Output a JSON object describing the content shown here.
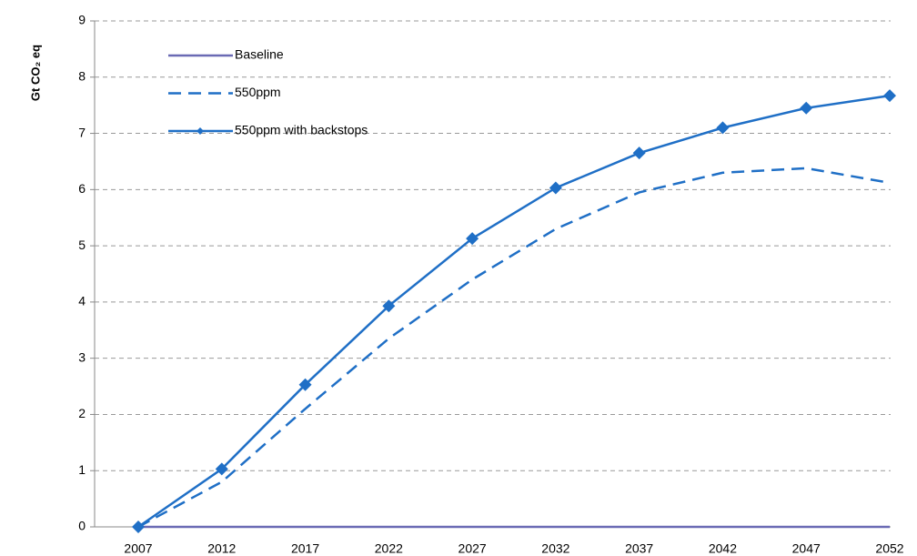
{
  "chart_data": {
    "type": "line",
    "y_label": "Gt CO₂ eq",
    "categories": [
      "2007",
      "2012",
      "2017",
      "2022",
      "2027",
      "2032",
      "2037",
      "2042",
      "2047",
      "2052"
    ],
    "series": [
      {
        "name": "Baseline",
        "color": "#6a6ab4",
        "style": "solid",
        "marker": "none",
        "values": [
          0,
          0,
          0,
          0,
          0,
          0,
          0,
          0,
          0,
          0
        ]
      },
      {
        "name": "550ppm",
        "color": "#1f6fc6",
        "style": "dashed",
        "marker": "none",
        "values": [
          0,
          0.8,
          2.1,
          3.35,
          4.4,
          5.3,
          5.95,
          6.3,
          6.38,
          6.12
        ]
      },
      {
        "name": "550ppm with backstops",
        "color": "#1f6fc6",
        "style": "solid",
        "marker": "diamond",
        "values": [
          0,
          1.03,
          2.53,
          3.93,
          5.13,
          6.03,
          6.65,
          7.1,
          7.45,
          7.67
        ]
      }
    ],
    "ylim": [
      0,
      9
    ],
    "yticks": [
      0,
      1,
      2,
      3,
      4,
      5,
      6,
      7,
      8,
      9
    ],
    "grid": true,
    "legend": "upper left"
  }
}
